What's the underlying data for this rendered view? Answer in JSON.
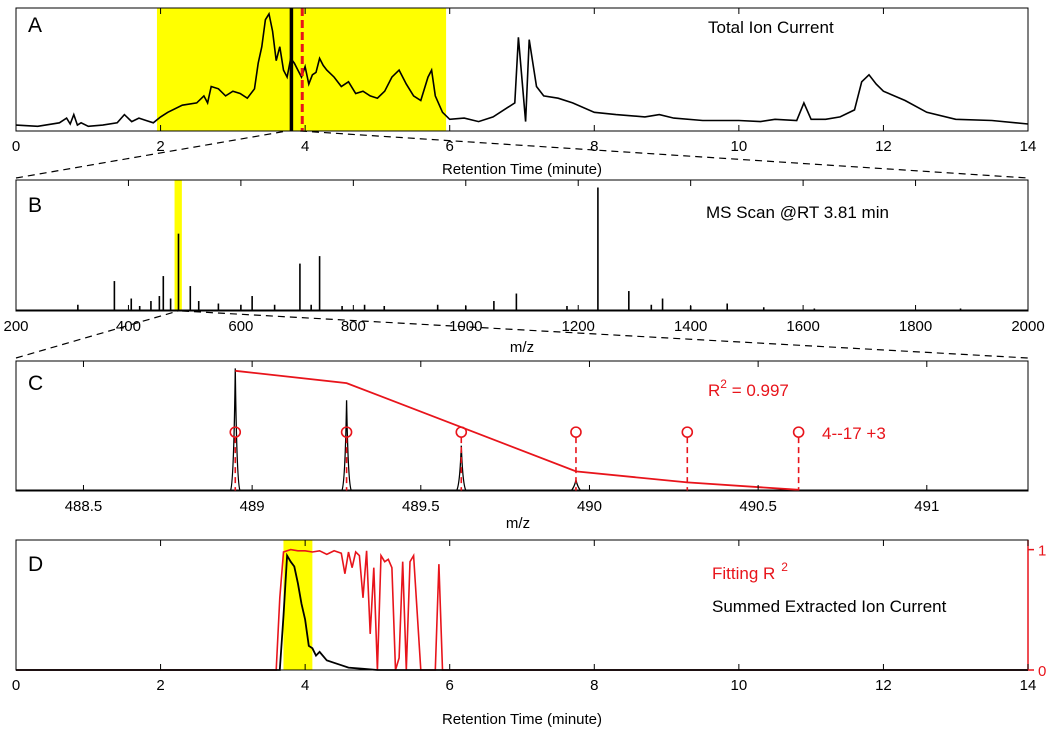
{
  "colors": {
    "trace": "#000000",
    "highlight": "#ffff00",
    "fit_red": "#e8141b",
    "guide_dash": "#000000"
  },
  "chart_data": [
    {
      "id": "A",
      "type": "line",
      "panel_label": "A",
      "title": "Total Ion Current",
      "xlabel": "Retention Time (minute)",
      "xlim": [
        0,
        14
      ],
      "ylim": [
        0,
        1
      ],
      "xticks": [
        0,
        2,
        4,
        6,
        8,
        10,
        12,
        14
      ],
      "highlight_x": [
        1.95,
        5.95
      ],
      "marker_line_x": 3.81,
      "dashed_marker_x": 3.96,
      "series": [
        {
          "x": [
            0,
            0.3,
            0.6,
            0.7,
            0.75,
            0.8,
            0.85,
            0.9,
            1.0,
            1.2,
            1.4,
            1.5,
            1.6,
            1.7,
            1.8,
            1.9,
            2.0,
            2.1,
            2.3,
            2.5,
            2.6,
            2.65,
            2.7,
            2.8,
            2.9,
            3.0,
            3.1,
            3.2,
            3.3,
            3.35,
            3.4,
            3.45,
            3.5,
            3.55,
            3.6,
            3.65,
            3.7,
            3.75,
            3.8,
            3.85,
            3.9,
            3.95,
            4.0,
            4.05,
            4.1,
            4.15,
            4.2,
            4.25,
            4.3,
            4.4,
            4.5,
            4.6,
            4.7,
            4.8,
            4.9,
            5.0,
            5.1,
            5.2,
            5.3,
            5.4,
            5.5,
            5.6,
            5.7,
            5.75,
            5.8,
            5.9,
            6.0,
            6.2,
            6.4,
            6.6,
            6.8,
            6.9,
            6.95,
            7.0,
            7.05,
            7.1,
            7.2,
            7.3,
            7.5,
            7.7,
            8.0,
            8.3,
            8.7,
            8.9,
            9.1,
            9.5,
            10.0,
            10.3,
            10.5,
            10.8,
            10.9,
            11.0,
            11.2,
            11.4,
            11.6,
            11.7,
            11.8,
            11.9,
            12.0,
            12.3,
            12.6,
            13.0,
            13.5,
            14.0
          ],
          "y": [
            0.05,
            0.04,
            0.07,
            0.11,
            0.06,
            0.14,
            0.05,
            0.07,
            0.04,
            0.05,
            0.07,
            0.14,
            0.08,
            0.11,
            0.09,
            0.07,
            0.12,
            0.16,
            0.22,
            0.24,
            0.3,
            0.24,
            0.38,
            0.36,
            0.3,
            0.34,
            0.32,
            0.28,
            0.36,
            0.58,
            0.72,
            0.95,
            1.0,
            0.85,
            0.6,
            0.72,
            0.52,
            0.46,
            0.62,
            0.58,
            0.52,
            0.46,
            0.55,
            0.4,
            0.48,
            0.5,
            0.62,
            0.56,
            0.52,
            0.46,
            0.38,
            0.42,
            0.32,
            0.34,
            0.3,
            0.28,
            0.34,
            0.46,
            0.52,
            0.4,
            0.3,
            0.26,
            0.46,
            0.52,
            0.3,
            0.16,
            0.1,
            0.11,
            0.08,
            0.12,
            0.2,
            0.24,
            0.8,
            0.44,
            0.08,
            0.78,
            0.38,
            0.3,
            0.28,
            0.24,
            0.16,
            0.14,
            0.12,
            0.14,
            0.11,
            0.09,
            0.09,
            0.08,
            0.1,
            0.09,
            0.24,
            0.1,
            0.1,
            0.12,
            0.18,
            0.42,
            0.48,
            0.4,
            0.34,
            0.26,
            0.16,
            0.1,
            0.09,
            0.06
          ]
        }
      ]
    },
    {
      "id": "B",
      "type": "bar",
      "panel_label": "B",
      "title": "MS Scan @RT 3.81 min",
      "xlabel": "m/z",
      "xlim": [
        200,
        2000
      ],
      "ylim": [
        0,
        1
      ],
      "xticks": [
        200,
        400,
        600,
        800,
        1000,
        1200,
        1400,
        1600,
        1800,
        2000
      ],
      "highlight_x": [
        482,
        495
      ],
      "peaks": [
        {
          "x": 310,
          "y": 0.05
        },
        {
          "x": 375,
          "y": 0.24
        },
        {
          "x": 405,
          "y": 0.1
        },
        {
          "x": 420,
          "y": 0.04
        },
        {
          "x": 440,
          "y": 0.08
        },
        {
          "x": 455,
          "y": 0.12
        },
        {
          "x": 462,
          "y": 0.28
        },
        {
          "x": 475,
          "y": 0.1
        },
        {
          "x": 489,
          "y": 0.62
        },
        {
          "x": 510,
          "y": 0.2
        },
        {
          "x": 525,
          "y": 0.08
        },
        {
          "x": 560,
          "y": 0.06
        },
        {
          "x": 600,
          "y": 0.05
        },
        {
          "x": 620,
          "y": 0.12
        },
        {
          "x": 660,
          "y": 0.05
        },
        {
          "x": 705,
          "y": 0.38
        },
        {
          "x": 725,
          "y": 0.05
        },
        {
          "x": 740,
          "y": 0.44
        },
        {
          "x": 780,
          "y": 0.04
        },
        {
          "x": 820,
          "y": 0.05
        },
        {
          "x": 855,
          "y": 0.04
        },
        {
          "x": 950,
          "y": 0.05
        },
        {
          "x": 1000,
          "y": 0.04
        },
        {
          "x": 1050,
          "y": 0.08
        },
        {
          "x": 1090,
          "y": 0.14
        },
        {
          "x": 1180,
          "y": 0.04
        },
        {
          "x": 1235,
          "y": 0.99
        },
        {
          "x": 1290,
          "y": 0.16
        },
        {
          "x": 1330,
          "y": 0.05
        },
        {
          "x": 1350,
          "y": 0.1
        },
        {
          "x": 1400,
          "y": 0.04
        },
        {
          "x": 1465,
          "y": 0.06
        },
        {
          "x": 1530,
          "y": 0.03
        },
        {
          "x": 1620,
          "y": 0.02
        },
        {
          "x": 1880,
          "y": 0.02
        }
      ]
    },
    {
      "id": "C",
      "type": "line",
      "panel_label": "C",
      "annotation_r2": {
        "prefix": "R",
        "sup": "2",
        "suffix": " = 0.997"
      },
      "label": "4--17 +3",
      "xlabel": "m/z",
      "xlim": [
        488.3,
        491.3
      ],
      "ylim": [
        0,
        1
      ],
      "xticks": [
        488.5,
        489,
        489.5,
        490,
        490.5,
        491
      ],
      "xtick_labels": [
        "488.5",
        "489",
        "489.5",
        "490",
        "490.5",
        "491"
      ],
      "observed_peaks": [
        {
          "x": 488.95,
          "y": 1.0
        },
        {
          "x": 489.28,
          "y": 0.74
        },
        {
          "x": 489.62,
          "y": 0.37
        },
        {
          "x": 489.96,
          "y": 0.09
        }
      ],
      "theoretical_positions": [
        488.95,
        489.28,
        489.62,
        489.96,
        490.29,
        490.62
      ],
      "fit_envelope": {
        "x": [
          488.95,
          489.28,
          489.62,
          489.96,
          490.29,
          490.62
        ],
        "y": [
          0.98,
          0.88,
          0.52,
          0.16,
          0.07,
          0.01
        ]
      },
      "circle_marker_y": 0.48
    },
    {
      "id": "D",
      "type": "line",
      "panel_label": "D",
      "xlabel": "Retention Time (minute)",
      "xlim": [
        0,
        14
      ],
      "ylim": [
        0,
        1.05
      ],
      "xticks": [
        0,
        2,
        4,
        6,
        8,
        10,
        12,
        14
      ],
      "y2_ticks": [
        0,
        1
      ],
      "highlight_x": [
        3.7,
        4.1
      ],
      "series": [
        {
          "name": "Fitting R 2",
          "legend_main": "Fitting R",
          "legend_sup": "2",
          "color": "#e8141b",
          "x": [
            0,
            3.6,
            3.65,
            3.7,
            3.8,
            3.9,
            4.0,
            4.1,
            4.2,
            4.3,
            4.4,
            4.5,
            4.55,
            4.6,
            4.65,
            4.7,
            4.75,
            4.8,
            4.85,
            4.9,
            4.95,
            5.0,
            5.05,
            5.1,
            5.15,
            5.2,
            5.25,
            5.3,
            5.35,
            5.4,
            5.45,
            5.5,
            5.6,
            5.7,
            5.8,
            5.85,
            5.9,
            5.95,
            6.0,
            14
          ],
          "y": [
            0,
            0,
            0.6,
            0.98,
            1.0,
            0.99,
            0.99,
            0.98,
            0.99,
            0.96,
            0.99,
            0.97,
            0.8,
            0.98,
            0.85,
            0.98,
            0.95,
            0.6,
            0.99,
            0.3,
            0.85,
            0,
            0.95,
            0.9,
            0.92,
            0.85,
            0,
            0.1,
            0.9,
            0,
            0.9,
            0.95,
            0,
            0,
            0,
            0.88,
            0,
            0,
            0,
            0
          ]
        },
        {
          "name": "Summed Extracted Ion Current",
          "color": "#000000",
          "x": [
            0,
            3.65,
            3.7,
            3.75,
            3.8,
            3.85,
            3.9,
            3.95,
            4.0,
            4.05,
            4.1,
            4.15,
            4.2,
            4.3,
            4.4,
            4.5,
            4.6,
            4.8,
            5.0,
            14
          ],
          "y": [
            0,
            0,
            0.45,
            0.95,
            0.9,
            0.86,
            0.72,
            0.55,
            0.42,
            0.2,
            0.18,
            0.12,
            0.15,
            0.08,
            0.06,
            0.04,
            0.02,
            0.01,
            0,
            0
          ]
        }
      ]
    }
  ]
}
